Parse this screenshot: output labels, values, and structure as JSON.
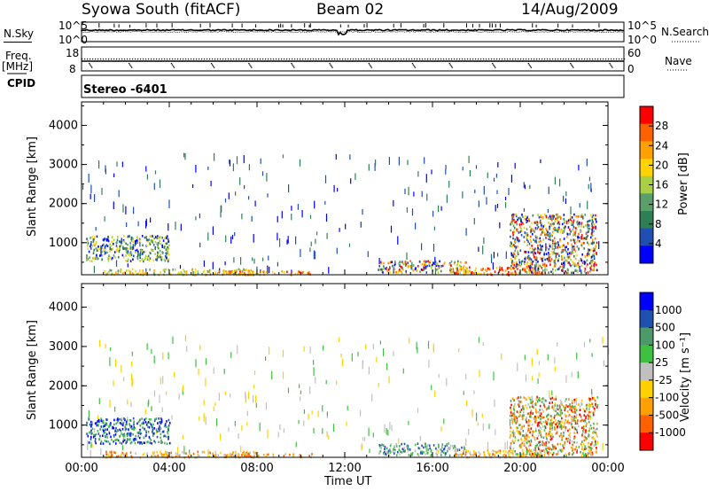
{
  "header": {
    "station": "Syowa South (fitACF)",
    "beam": "Beam 02",
    "date": "14/Aug/2009"
  },
  "panels": {
    "nsky": {
      "label": "N.Sky",
      "ticks": [
        "10^5",
        "10^0"
      ],
      "right_label": "N.Search",
      "right_ticks": [
        "10^5",
        "10^0"
      ]
    },
    "freq": {
      "label_line1": "Freq.",
      "label_line2": "[MHz]",
      "ticks": [
        "18",
        "8"
      ],
      "right_label": "Nave",
      "right_ticks": [
        "60",
        "0"
      ]
    },
    "cpid": {
      "label": "CPID",
      "text": "Stereo -6401"
    }
  },
  "colors": {
    "power": [
      "#0000ff",
      "#1f4fb3",
      "#2f7f55",
      "#5a9e6a",
      "#a8d040",
      "#ffd200",
      "#ffa000",
      "#ff6000",
      "#ff0000"
    ],
    "velocity": [
      "#ff0000",
      "#ff6000",
      "#ffa000",
      "#ffd000",
      "#c0c0c0",
      "#40c040",
      "#4c9a6a",
      "#2050b0",
      "#0000ff"
    ]
  },
  "chart_data": [
    {
      "type": "heatmap",
      "name": "",
      "ylabel": "Slant Range [km]",
      "ylim": [
        180,
        4600
      ],
      "yticks": [
        "4000",
        "3000",
        "2000",
        "1000"
      ],
      "xlim_hours": [
        0,
        24
      ],
      "colorbar": {
        "label": "Power [dB]",
        "ticks": [
          "28",
          "24",
          "20",
          "16",
          "12",
          "8",
          "4"
        ],
        "range": [
          0,
          32
        ]
      },
      "regions": [
        {
          "t": [
            0.2,
            4.0
          ],
          "r": [
            550,
            1200
          ],
          "level": "mixed-low"
        },
        {
          "t": [
            1.0,
            8.0
          ],
          "r": [
            200,
            350
          ],
          "level": "mid"
        },
        {
          "t": [
            6.0,
            10.5
          ],
          "r": [
            200,
            300
          ],
          "level": "high"
        },
        {
          "t": [
            13.5,
            17.5
          ],
          "r": [
            250,
            560
          ],
          "level": "mixed"
        },
        {
          "t": [
            17.0,
            21.0
          ],
          "r": [
            200,
            400
          ],
          "level": "high"
        },
        {
          "t": [
            19.5,
            23.5
          ],
          "r": [
            250,
            1750
          ],
          "level": "mixed"
        }
      ]
    },
    {
      "type": "heatmap",
      "name": "",
      "ylabel": "Slant Range [km]",
      "ylim": [
        180,
        4600
      ],
      "yticks": [
        "4000",
        "3000",
        "2000",
        "1000"
      ],
      "xlim_hours": [
        0,
        24
      ],
      "colorbar": {
        "label": "Velocity [m s⁻¹]",
        "ticks": [
          "1000",
          "500",
          "100",
          "25",
          "-25",
          "-100",
          "-500",
          "-1000"
        ],
        "range": [
          -1000,
          1000
        ]
      },
      "regions": [
        {
          "t": [
            0.2,
            4.0
          ],
          "r": [
            550,
            1200
          ],
          "level": "mixed-pos"
        },
        {
          "t": [
            1.0,
            8.0
          ],
          "r": [
            200,
            350
          ],
          "level": "neg"
        },
        {
          "t": [
            6.0,
            10.5
          ],
          "r": [
            200,
            300
          ],
          "level": "neg"
        },
        {
          "t": [
            13.5,
            17.5
          ],
          "r": [
            250,
            560
          ],
          "level": "pos"
        },
        {
          "t": [
            17.0,
            21.0
          ],
          "r": [
            200,
            400
          ],
          "level": "neg"
        },
        {
          "t": [
            19.5,
            23.5
          ],
          "r": [
            250,
            1750
          ],
          "level": "mixed-neg"
        }
      ]
    }
  ],
  "xaxis": {
    "label": "Time UT",
    "ticks": [
      "00:00",
      "04:00",
      "08:00",
      "12:00",
      "16:00",
      "20:00",
      "00:00"
    ]
  }
}
